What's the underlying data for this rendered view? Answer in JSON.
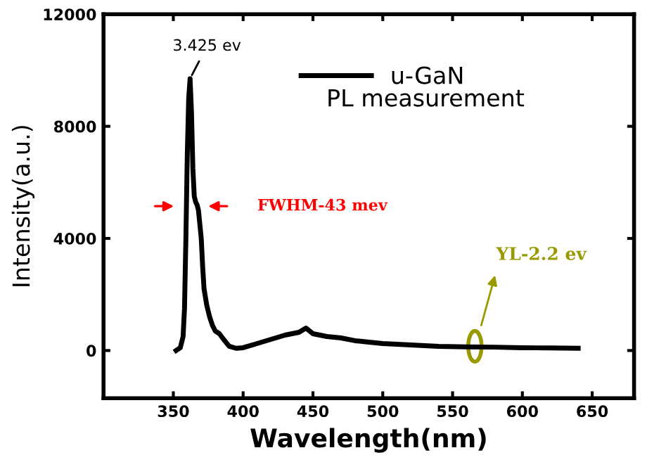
{
  "chart_data": {
    "type": "line",
    "xlabel": "Wavelength(nm)",
    "ylabel": "Intensity(a.u.)",
    "xlim": [
      300,
      680
    ],
    "ylim": [
      -1700,
      12000
    ],
    "xticks": [
      350,
      400,
      450,
      500,
      550,
      600,
      650
    ],
    "yticks": [
      0,
      4000,
      8000,
      12000
    ],
    "series": [
      {
        "name": "u-GaN",
        "color": "#000000",
        "x": [
          352,
          355,
          357,
          358,
          359,
          360,
          361,
          362,
          363,
          364,
          365,
          366,
          367,
          368,
          369,
          370,
          371,
          372,
          374,
          376,
          378,
          380,
          383,
          386,
          390,
          395,
          400,
          410,
          420,
          430,
          440,
          445,
          450,
          460,
          470,
          480,
          490,
          500,
          520,
          540,
          560,
          580,
          600,
          620,
          640
        ],
        "values": [
          0,
          100,
          500,
          1500,
          4000,
          7000,
          9000,
          9700,
          8500,
          6500,
          5500,
          5300,
          5200,
          5000,
          4500,
          4000,
          3000,
          2200,
          1600,
          1200,
          900,
          700,
          600,
          400,
          150,
          80,
          100,
          250,
          400,
          550,
          650,
          800,
          600,
          500,
          450,
          350,
          300,
          250,
          200,
          150,
          130,
          120,
          100,
          90,
          80
        ]
      }
    ],
    "legend": "top right",
    "marker": "none",
    "line_style": "solid",
    "grid": false,
    "annotations": [
      {
        "text": "3.425 ev",
        "x": 362,
        "y": 9700
      },
      "PL measurement",
      "FWHM-43 mev",
      "YL-2.2 ev"
    ]
  }
}
